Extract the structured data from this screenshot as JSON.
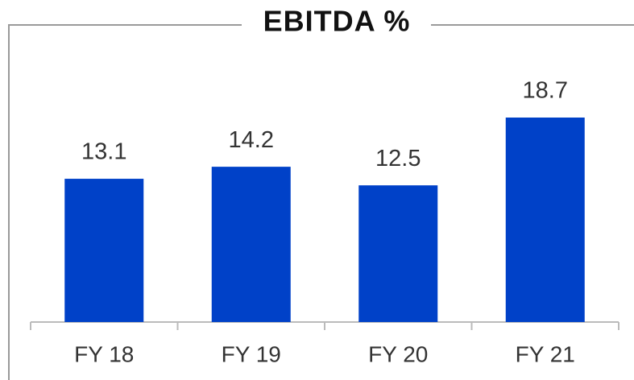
{
  "chart_data": {
    "type": "bar",
    "title": "EBITDA %",
    "categories": [
      "FY 18",
      "FY 19",
      "FY 20",
      "FY 21"
    ],
    "values": [
      13.1,
      14.2,
      12.5,
      18.7
    ],
    "color": "#0041c8"
  }
}
